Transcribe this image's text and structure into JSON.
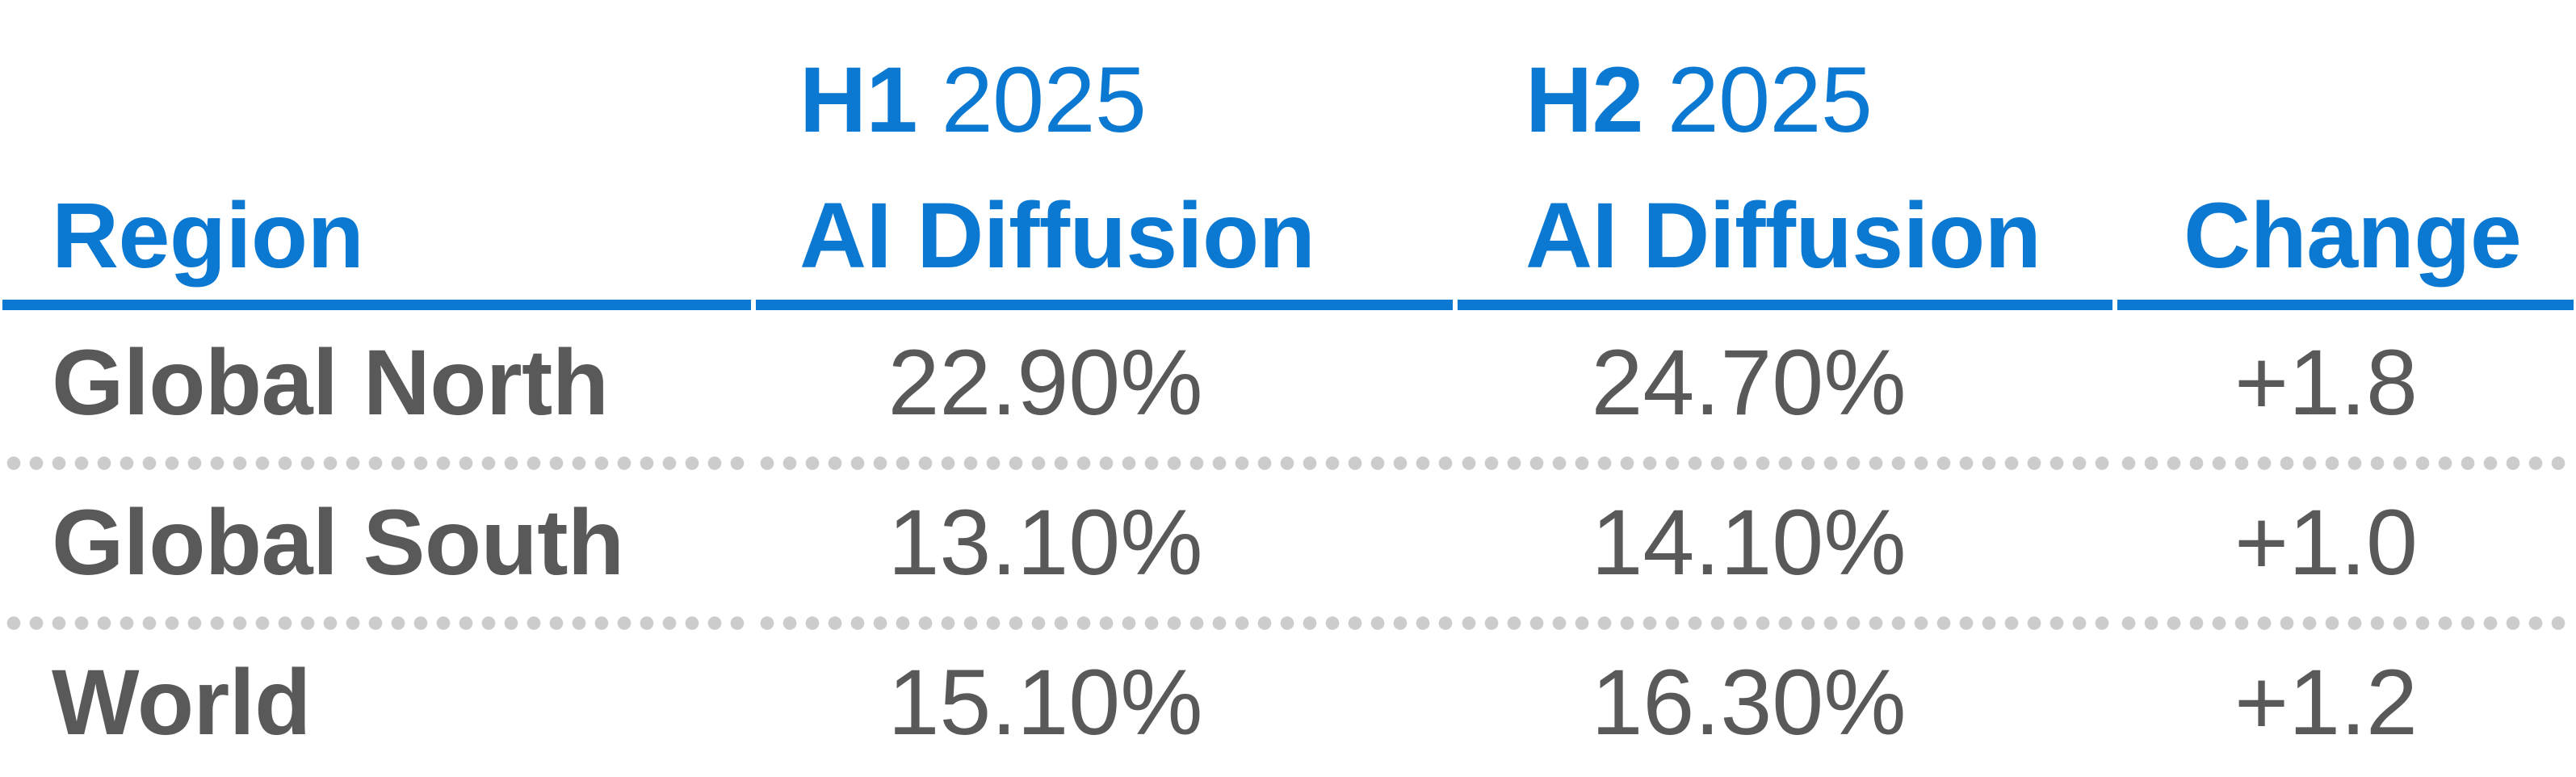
{
  "table": {
    "header": {
      "region": "Region",
      "h1_period": "H1",
      "h1_year": "2025",
      "h1_metric": "AI Diffusion",
      "h2_period": "H2",
      "h2_year": "2025",
      "h2_metric": "AI Diffusion",
      "change": "Change"
    },
    "rows": [
      {
        "region": "Global North",
        "h1_value": "22.90%",
        "h2_value": "24.70%",
        "change": "+1.8"
      },
      {
        "region": "Global South",
        "h1_value": "13.10%",
        "h2_value": "14.10%",
        "change": "+1.0"
      },
      {
        "region": "World",
        "h1_value": "15.10%",
        "h2_value": "16.30%",
        "change": "+1.2"
      }
    ]
  },
  "colors": {
    "accent_blue": "#0b78d2",
    "body_text_gray": "#595959",
    "dotted_divider_gray": "#cccccc",
    "background": "#ffffff"
  },
  "chart_data": {
    "type": "table",
    "columns": [
      "Region",
      "H1 2025 AI Diffusion",
      "H2 2025 AI Diffusion",
      "Change"
    ],
    "rows": [
      [
        "Global North",
        "22.90%",
        "24.70%",
        "+1.8"
      ],
      [
        "Global South",
        "13.10%",
        "14.10%",
        "+1.0"
      ],
      [
        "World",
        "15.10%",
        "16.30%",
        "+1.2"
      ]
    ],
    "series": [
      {
        "name": "H1 2025 AI Diffusion",
        "values": [
          22.9,
          13.1,
          15.1
        ],
        "unit": "%"
      },
      {
        "name": "H2 2025 AI Diffusion",
        "values": [
          24.7,
          14.1,
          16.3
        ],
        "unit": "%"
      },
      {
        "name": "Change",
        "values": [
          1.8,
          1.0,
          1.2
        ],
        "unit": "pp"
      }
    ],
    "categories": [
      "Global North",
      "Global South",
      "World"
    ],
    "title": "",
    "legend": "none",
    "grid": "off"
  }
}
